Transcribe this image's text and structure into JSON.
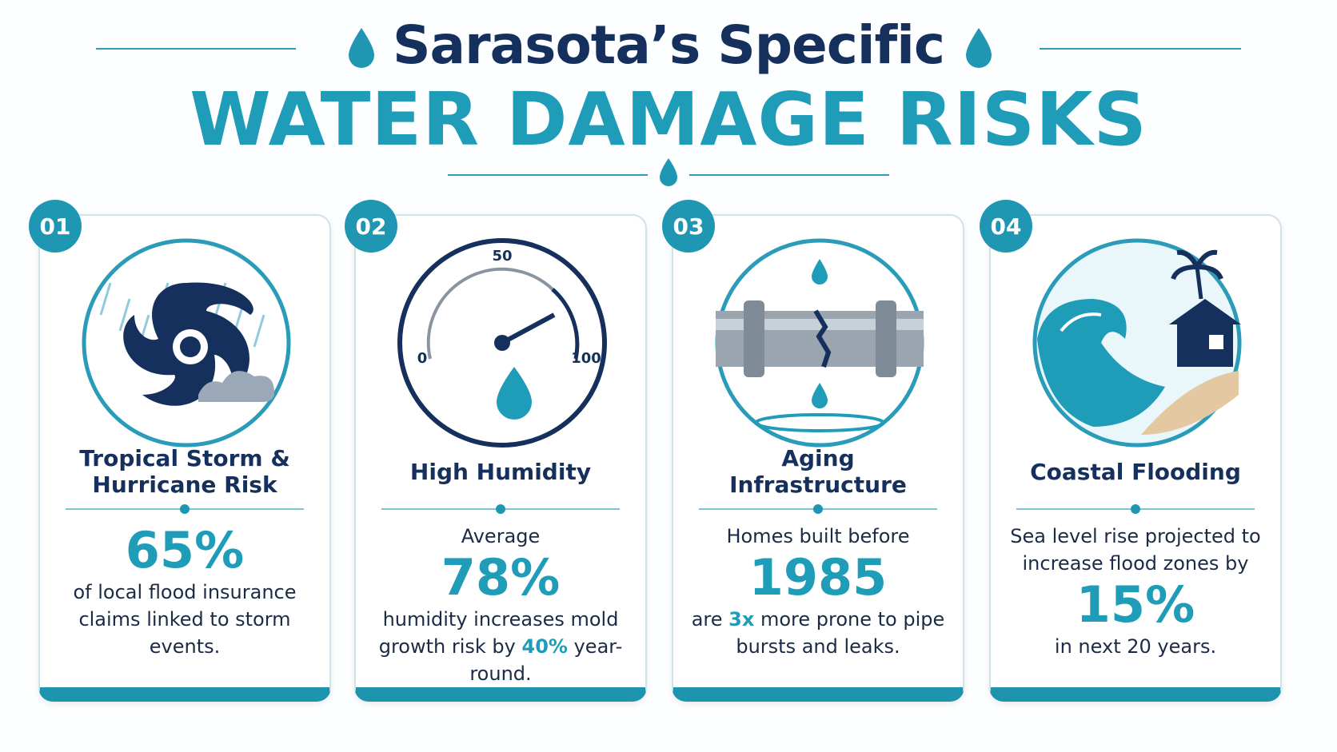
{
  "header": {
    "title_line1": "Sarasota’s Specific",
    "title_line2": "WATER DAMAGE RISKS"
  },
  "cards": [
    {
      "number": "01",
      "title": "Tropical Storm & Hurricane Risk",
      "stat": "65%",
      "body": [
        {
          "text": "of local flood insurance claims linked to storm events."
        }
      ]
    },
    {
      "number": "02",
      "title": "High Humidity",
      "gauge": {
        "min": "0",
        "mid": "50",
        "max": "100"
      },
      "pre": "Average",
      "stat": "78%",
      "body": [
        {
          "text": "humidity increases mold growth risk by"
        },
        {
          "text": "40%",
          "accent": true
        },
        {
          "text": "year-round."
        }
      ]
    },
    {
      "number": "03",
      "title": "Aging Infrastructure",
      "pre": "Homes built before",
      "stat": "1985",
      "body": [
        {
          "text": "are"
        },
        {
          "text": "3x",
          "accent": true
        },
        {
          "text": "more prone to pipe bursts and leaks."
        }
      ]
    },
    {
      "number": "04",
      "title": "Coastal Flooding",
      "pre": "Sea level rise projected to increase flood zones by",
      "stat": "15%",
      "body": [
        {
          "text": "in next 20 years."
        }
      ]
    }
  ]
}
